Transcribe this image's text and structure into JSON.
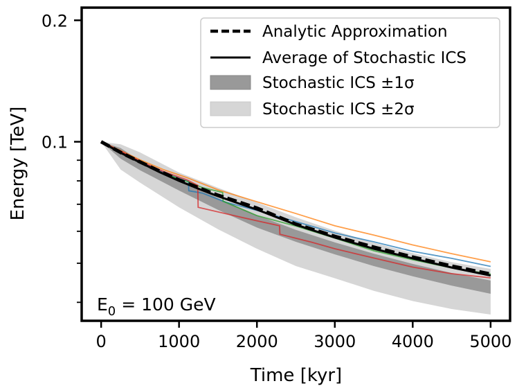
{
  "chart_data": {
    "type": "line",
    "xlabel": "Time [kyr]",
    "ylabel": "Energy [TeV]",
    "xlim": [
      -250,
      5250
    ],
    "ylim": [
      0.036,
      0.215
    ],
    "yscale": "log",
    "x_ticks": [
      0,
      1000,
      2000,
      3000,
      4000,
      5000
    ],
    "x_tick_labels": [
      "0",
      "1000",
      "2000",
      "3000",
      "4000",
      "5000"
    ],
    "y_ticks_major": [
      0.1,
      0.2
    ],
    "y_tick_labels": [
      "0.1",
      "0.2"
    ],
    "y_ticks_minor": [
      0.04,
      0.05,
      0.06,
      0.07,
      0.08,
      0.09
    ],
    "annotation": {
      "prefix": "E",
      "subscript": "0",
      "suffix": " = 100 GeV"
    },
    "legend": {
      "placement": "top-right",
      "entries": [
        {
          "label": "Analytic Approximation",
          "style": "dashed"
        },
        {
          "label": "Average of Stochastic ICS",
          "style": "solid"
        },
        {
          "label": "Stochastic ICS ±1σ",
          "style": "band-dark"
        },
        {
          "label": "Stochastic ICS ±2σ",
          "style": "band-light"
        }
      ]
    },
    "band_2sigma": {
      "color": "#d6d6d6",
      "x": [
        0,
        250,
        500,
        1000,
        1500,
        2000,
        2500,
        3000,
        3500,
        4000,
        4500,
        5000
      ],
      "lower": [
        0.1,
        0.0853,
        0.0792,
        0.0688,
        0.0607,
        0.0543,
        0.0492,
        0.0459,
        0.0427,
        0.0403,
        0.0385,
        0.0373
      ],
      "upper": [
        0.1,
        0.0986,
        0.0941,
        0.0839,
        0.0769,
        0.0707,
        0.065,
        0.0602,
        0.0562,
        0.053,
        0.0503,
        0.0484
      ]
    },
    "band_1sigma": {
      "color": "#999999",
      "x": [
        0,
        250,
        500,
        1000,
        1500,
        2000,
        2500,
        3000,
        3500,
        4000,
        4500,
        5000
      ],
      "lower": [
        0.1,
        0.0908,
        0.085,
        0.0757,
        0.0678,
        0.0613,
        0.0565,
        0.0526,
        0.0492,
        0.0464,
        0.044,
        0.042
      ],
      "upper": [
        0.1,
        0.0965,
        0.0896,
        0.081,
        0.0725,
        0.0658,
        0.0605,
        0.0563,
        0.0528,
        0.0498,
        0.0473,
        0.0453
      ]
    },
    "series": [
      {
        "name": "Analytic Approximation",
        "color": "#000000",
        "style": "dashed",
        "x": [
          0,
          250,
          500,
          750,
          1000,
          1250,
          1500,
          1750,
          2000,
          2500,
          3000,
          3500,
          4000,
          4500,
          5000
        ],
        "y": [
          0.1,
          0.0941,
          0.0891,
          0.0846,
          0.0804,
          0.0769,
          0.0737,
          0.0711,
          0.0685,
          0.0625,
          0.0583,
          0.0548,
          0.0518,
          0.0492,
          0.047
        ]
      },
      {
        "name": "Average of Stochastic ICS",
        "color": "#000000",
        "style": "solid",
        "x": [
          0,
          250,
          500,
          750,
          1000,
          1250,
          1500,
          1750,
          2000,
          2500,
          3000,
          3500,
          4000,
          4500,
          5000
        ],
        "y": [
          0.1,
          0.0939,
          0.0889,
          0.0841,
          0.08,
          0.0765,
          0.0733,
          0.0705,
          0.0679,
          0.0623,
          0.0579,
          0.0543,
          0.0514,
          0.0488,
          0.0466
        ]
      },
      {
        "name": "Sample 1",
        "color": "#1f77b4",
        "style": "thin",
        "x": [
          0,
          250,
          500,
          800,
          1100,
          1120,
          1125,
          1300,
          1600,
          2000,
          2500,
          3000,
          3500,
          4000,
          4500,
          5000
        ],
        "y": [
          0.1,
          0.0945,
          0.0893,
          0.0839,
          0.0799,
          0.0799,
          0.0756,
          0.0746,
          0.0708,
          0.0676,
          0.0634,
          0.0594,
          0.0565,
          0.0535,
          0.0514,
          0.0491
        ]
      },
      {
        "name": "Sample 2",
        "color": "#ff7f0e",
        "style": "thin",
        "x": [
          0,
          250,
          500,
          800,
          1100,
          1500,
          2000,
          2500,
          3000,
          3500,
          4000,
          4500,
          5000
        ],
        "y": [
          0.1,
          0.0951,
          0.0902,
          0.0853,
          0.0815,
          0.076,
          0.071,
          0.0664,
          0.0619,
          0.0587,
          0.0555,
          0.0528,
          0.0504
        ]
      },
      {
        "name": "Sample 3",
        "color": "#2ca02c",
        "style": "thin",
        "x": [
          0,
          250,
          500,
          800,
          1100,
          1300,
          1560,
          1565,
          2000,
          2500,
          3000,
          3500,
          4000,
          4500,
          5000
        ],
        "y": [
          0.1,
          0.0941,
          0.0886,
          0.0835,
          0.0798,
          0.077,
          0.0749,
          0.0712,
          0.0656,
          0.0618,
          0.0577,
          0.0537,
          0.051,
          0.0487,
          0.047
        ]
      },
      {
        "name": "Sample 4",
        "color": "#d62728",
        "style": "thin",
        "x": [
          0,
          250,
          500,
          800,
          1100,
          1240,
          1245,
          1800,
          2290,
          2295,
          2700,
          3000,
          3500,
          4000,
          4500,
          5000
        ],
        "y": [
          0.1,
          0.0949,
          0.0896,
          0.0844,
          0.0805,
          0.078,
          0.0688,
          0.065,
          0.0619,
          0.059,
          0.0564,
          0.0543,
          0.0515,
          0.0489,
          0.0471,
          0.046
        ]
      }
    ]
  }
}
